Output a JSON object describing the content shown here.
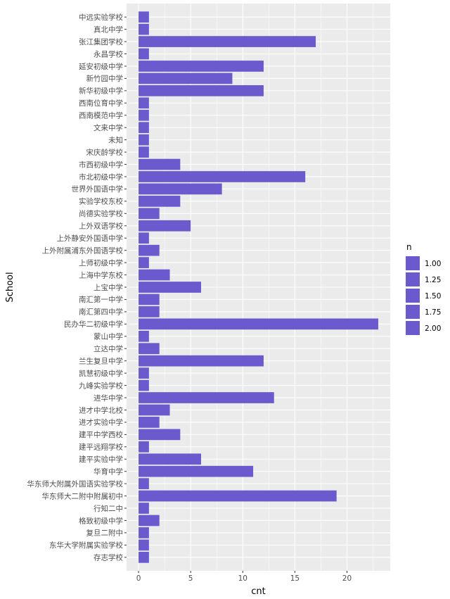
{
  "chart_data": {
    "type": "bar",
    "orientation": "horizontal",
    "xlabel": "cnt",
    "ylabel": "School",
    "xlim": [
      -1.15,
      24.15
    ],
    "xticks": [
      0,
      5,
      10,
      15,
      20
    ],
    "grid": true,
    "bar_color": "#6A5ACD",
    "panel_background": "#EBEBEB",
    "legend": {
      "title": "n",
      "position": "right",
      "entries": [
        "1.00",
        "1.25",
        "1.50",
        "1.75",
        "2.00"
      ]
    },
    "categories": [
      "中远实验学校",
      "真北中学",
      "张江集团学校",
      "永昌学校",
      "延安初级中学",
      "新竹园中学",
      "新华初级中学",
      "西南位育中学",
      "西南模范中学",
      "文来中学",
      "未知",
      "宋庆龄学校",
      "市西初级中学",
      "市北初级中学",
      "世界外国语中学",
      "实验学校东校",
      "尚德实验学校",
      "上外双语学校",
      "上外静安外国语中学",
      "上外附属浦东外国语学校",
      "上师初级中学",
      "上海中学东校",
      "上宝中学",
      "南汇第一中学",
      "南汇第四中学",
      "民办华二初级中学",
      "蒙山中学",
      "立达中学",
      "兰生复旦中学",
      "凯慧初级中学",
      "九峰实验学校",
      "进华中学",
      "进才中学北校",
      "进才实验中学",
      "建平中学西校",
      "建平远翔学校",
      "建平实验中学",
      "华育中学",
      "华东师大附属外国语实验学校",
      "华东师大二附中附属初中",
      "行知二中",
      "格致初级中学",
      "复旦二附中",
      "东华大学附属实验学校",
      "存志学校"
    ],
    "values": [
      1,
      1,
      17,
      1,
      12,
      9,
      12,
      1,
      1,
      1,
      1,
      1,
      4,
      16,
      8,
      4,
      2,
      5,
      1,
      2,
      1,
      3,
      6,
      2,
      2,
      23,
      1,
      2,
      12,
      1,
      1,
      13,
      3,
      2,
      4,
      1,
      6,
      11,
      1,
      19,
      1,
      2,
      1,
      1,
      1
    ]
  }
}
